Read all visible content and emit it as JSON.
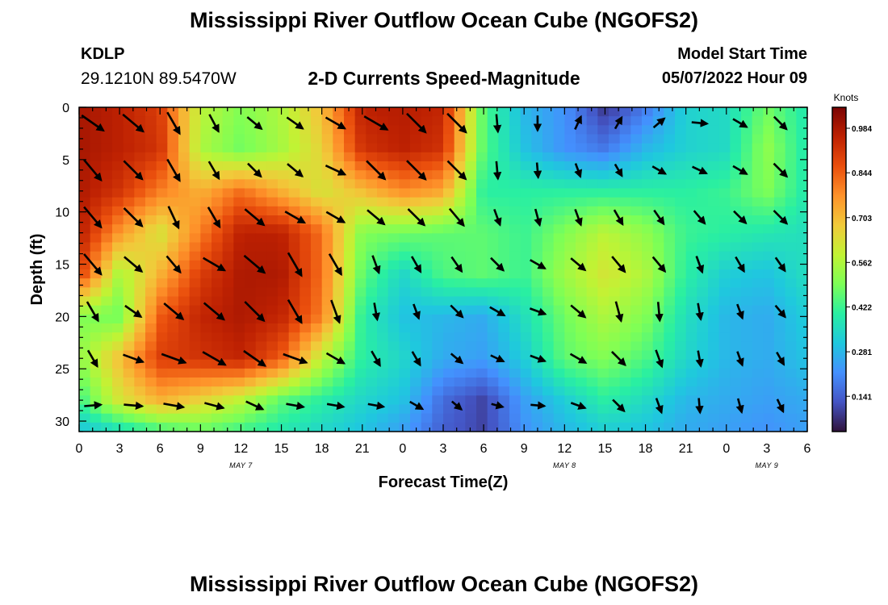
{
  "header": {
    "title": "Mississippi River Outflow Ocean Cube (NGOFS2)",
    "station_id": "KDLP",
    "station_coords": "29.1210N  89.5470W",
    "subtitle": "2-D Currents Speed-Magnitude",
    "model_start_label": "Model Start Time",
    "model_start_value": "05/07/2022 Hour 09"
  },
  "footer": {
    "title": "Mississippi River Outflow Ocean Cube (NGOFS2)"
  },
  "chart_data": {
    "type": "heatmap",
    "title": "2-D Currents Speed-Magnitude",
    "xlabel": "Forecast Time(Z)",
    "ylabel": "Depth (ft)",
    "colorbar_label": "Knots",
    "colorbar_ticks": [
      "0.984",
      "0.844",
      "0.703",
      "0.562",
      "0.422",
      "0.281",
      "0.141"
    ],
    "colorbar_values": [
      0.984,
      0.844,
      0.703,
      0.562,
      0.422,
      0.281,
      0.141
    ],
    "value_range": [
      0.03,
      1.05
    ],
    "x_tick_labels": [
      "0",
      "3",
      "6",
      "9",
      "12",
      "15",
      "18",
      "21",
      "0",
      "3",
      "6",
      "9",
      "12",
      "15",
      "18",
      "21",
      "0",
      "3",
      "6"
    ],
    "x_hours": [
      0,
      3,
      6,
      9,
      12,
      15,
      18,
      21,
      24,
      27,
      30,
      33,
      36,
      39,
      42,
      45,
      48,
      51,
      54
    ],
    "x_range_hours": [
      0,
      54
    ],
    "date_labels": [
      {
        "text": "MAY 7",
        "hour": 12
      },
      {
        "text": "MAY 8",
        "hour": 36
      },
      {
        "text": "MAY 9",
        "hour": 51
      }
    ],
    "y_tick_labels": [
      "0",
      "5",
      "10",
      "15",
      "20",
      "25",
      "30"
    ],
    "y_ticks": [
      0,
      5,
      10,
      15,
      20,
      25,
      30
    ],
    "y_range": [
      0,
      31
    ],
    "y_inverted": true,
    "grid": false,
    "legend": "right colorbar",
    "colors": [
      "#30123b",
      "#4454c4",
      "#4490fe",
      "#1fc8de",
      "#29efa2",
      "#7dff56",
      "#c1f334",
      "#f1ca3a",
      "#fe922a",
      "#ea4f0d",
      "#be2102",
      "#7a0403"
    ],
    "speed_grid_hours": [
      0,
      3,
      6,
      9,
      12,
      15,
      18,
      21,
      24,
      27,
      30,
      33,
      36,
      39,
      42,
      45,
      48,
      51,
      54
    ],
    "speed_grid_depths": [
      0,
      4,
      8,
      12,
      16,
      20,
      24,
      28,
      31
    ],
    "speed_knots": [
      [
        0.99,
        0.96,
        0.9,
        0.58,
        0.5,
        0.56,
        0.7,
        0.96,
        0.97,
        0.95,
        0.45,
        0.28,
        0.22,
        0.08,
        0.18,
        0.33,
        0.35,
        0.48,
        0.38
      ],
      [
        0.99,
        0.96,
        0.92,
        0.56,
        0.48,
        0.55,
        0.66,
        0.92,
        0.96,
        0.92,
        0.45,
        0.3,
        0.22,
        0.18,
        0.28,
        0.33,
        0.35,
        0.52,
        0.38
      ],
      [
        0.98,
        0.92,
        0.8,
        0.72,
        0.82,
        0.72,
        0.62,
        0.7,
        0.78,
        0.74,
        0.4,
        0.4,
        0.4,
        0.4,
        0.4,
        0.4,
        0.42,
        0.5,
        0.38
      ],
      [
        0.97,
        0.76,
        0.62,
        0.8,
        0.96,
        0.96,
        0.82,
        0.5,
        0.48,
        0.46,
        0.46,
        0.42,
        0.5,
        0.58,
        0.52,
        0.42,
        0.4,
        0.38,
        0.36
      ],
      [
        0.9,
        0.55,
        0.72,
        0.9,
        0.98,
        0.98,
        0.82,
        0.46,
        0.34,
        0.44,
        0.46,
        0.42,
        0.54,
        0.62,
        0.56,
        0.4,
        0.32,
        0.3,
        0.36
      ],
      [
        0.5,
        0.48,
        0.85,
        0.95,
        0.98,
        0.95,
        0.8,
        0.4,
        0.3,
        0.28,
        0.26,
        0.36,
        0.48,
        0.56,
        0.5,
        0.36,
        0.28,
        0.26,
        0.32
      ],
      [
        0.52,
        0.7,
        0.9,
        0.92,
        0.95,
        0.85,
        0.58,
        0.4,
        0.34,
        0.26,
        0.24,
        0.32,
        0.46,
        0.5,
        0.44,
        0.34,
        0.28,
        0.26,
        0.3
      ],
      [
        0.42,
        0.62,
        0.72,
        0.66,
        0.58,
        0.46,
        0.4,
        0.34,
        0.3,
        0.16,
        0.1,
        0.24,
        0.32,
        0.4,
        0.35,
        0.28,
        0.26,
        0.24,
        0.26
      ],
      [
        0.3,
        0.35,
        0.42,
        0.46,
        0.42,
        0.38,
        0.34,
        0.3,
        0.24,
        0.14,
        0.1,
        0.22,
        0.28,
        0.32,
        0.3,
        0.26,
        0.24,
        0.22,
        0.24
      ]
    ],
    "vector_hours": [
      1,
      4,
      7,
      10,
      13,
      16,
      19,
      22,
      25,
      28,
      31,
      34,
      37,
      40,
      43,
      46,
      49,
      52
    ],
    "vector_depths": [
      1.5,
      6,
      10.5,
      15,
      19.5,
      24,
      28.5
    ],
    "vector_angles_deg": [
      [
        35,
        40,
        60,
        62,
        40,
        35,
        30,
        30,
        45,
        45,
        85,
        90,
        -65,
        -60,
        -40,
        5,
        30,
        45
      ],
      [
        50,
        45,
        60,
        60,
        45,
        40,
        25,
        45,
        45,
        45,
        85,
        85,
        70,
        60,
        30,
        25,
        30,
        45
      ],
      [
        50,
        45,
        65,
        60,
        40,
        30,
        30,
        40,
        45,
        50,
        70,
        75,
        70,
        60,
        55,
        50,
        45,
        45
      ],
      [
        50,
        40,
        50,
        30,
        40,
        60,
        60,
        70,
        60,
        55,
        45,
        30,
        40,
        50,
        50,
        70,
        60,
        55
      ],
      [
        60,
        35,
        40,
        40,
        45,
        60,
        70,
        80,
        70,
        45,
        30,
        20,
        40,
        75,
        85,
        80,
        70,
        50
      ],
      [
        60,
        20,
        20,
        30,
        35,
        20,
        30,
        60,
        60,
        40,
        25,
        20,
        30,
        45,
        70,
        80,
        70,
        60
      ],
      [
        -5,
        5,
        10,
        15,
        25,
        10,
        10,
        10,
        30,
        40,
        15,
        5,
        20,
        45,
        70,
        85,
        75,
        65
      ]
    ],
    "vector_knots": [
      [
        0.95,
        0.95,
        0.85,
        0.55,
        0.5,
        0.55,
        0.7,
        0.95,
        0.95,
        0.95,
        0.45,
        0.3,
        0.25,
        0.2,
        0.25,
        0.33,
        0.35,
        0.45
      ],
      [
        0.95,
        0.92,
        0.85,
        0.58,
        0.5,
        0.55,
        0.66,
        0.92,
        0.95,
        0.9,
        0.45,
        0.3,
        0.25,
        0.22,
        0.3,
        0.33,
        0.35,
        0.5
      ],
      [
        0.95,
        0.9,
        0.8,
        0.75,
        0.85,
        0.72,
        0.62,
        0.7,
        0.75,
        0.7,
        0.4,
        0.4,
        0.4,
        0.4,
        0.4,
        0.4,
        0.42,
        0.5
      ],
      [
        0.95,
        0.75,
        0.65,
        0.85,
        0.95,
        0.95,
        0.8,
        0.5,
        0.46,
        0.46,
        0.46,
        0.42,
        0.5,
        0.58,
        0.52,
        0.42,
        0.4,
        0.38
      ],
      [
        0.7,
        0.55,
        0.85,
        0.92,
        0.98,
        0.95,
        0.8,
        0.42,
        0.32,
        0.4,
        0.4,
        0.38,
        0.5,
        0.6,
        0.52,
        0.38,
        0.3,
        0.3
      ],
      [
        0.5,
        0.65,
        0.88,
        0.92,
        0.92,
        0.85,
        0.6,
        0.4,
        0.34,
        0.28,
        0.26,
        0.34,
        0.46,
        0.52,
        0.46,
        0.34,
        0.28,
        0.26
      ],
      [
        0.4,
        0.5,
        0.6,
        0.55,
        0.5,
        0.45,
        0.4,
        0.35,
        0.28,
        0.16,
        0.12,
        0.24,
        0.3,
        0.36,
        0.32,
        0.28,
        0.26,
        0.24
      ]
    ]
  }
}
